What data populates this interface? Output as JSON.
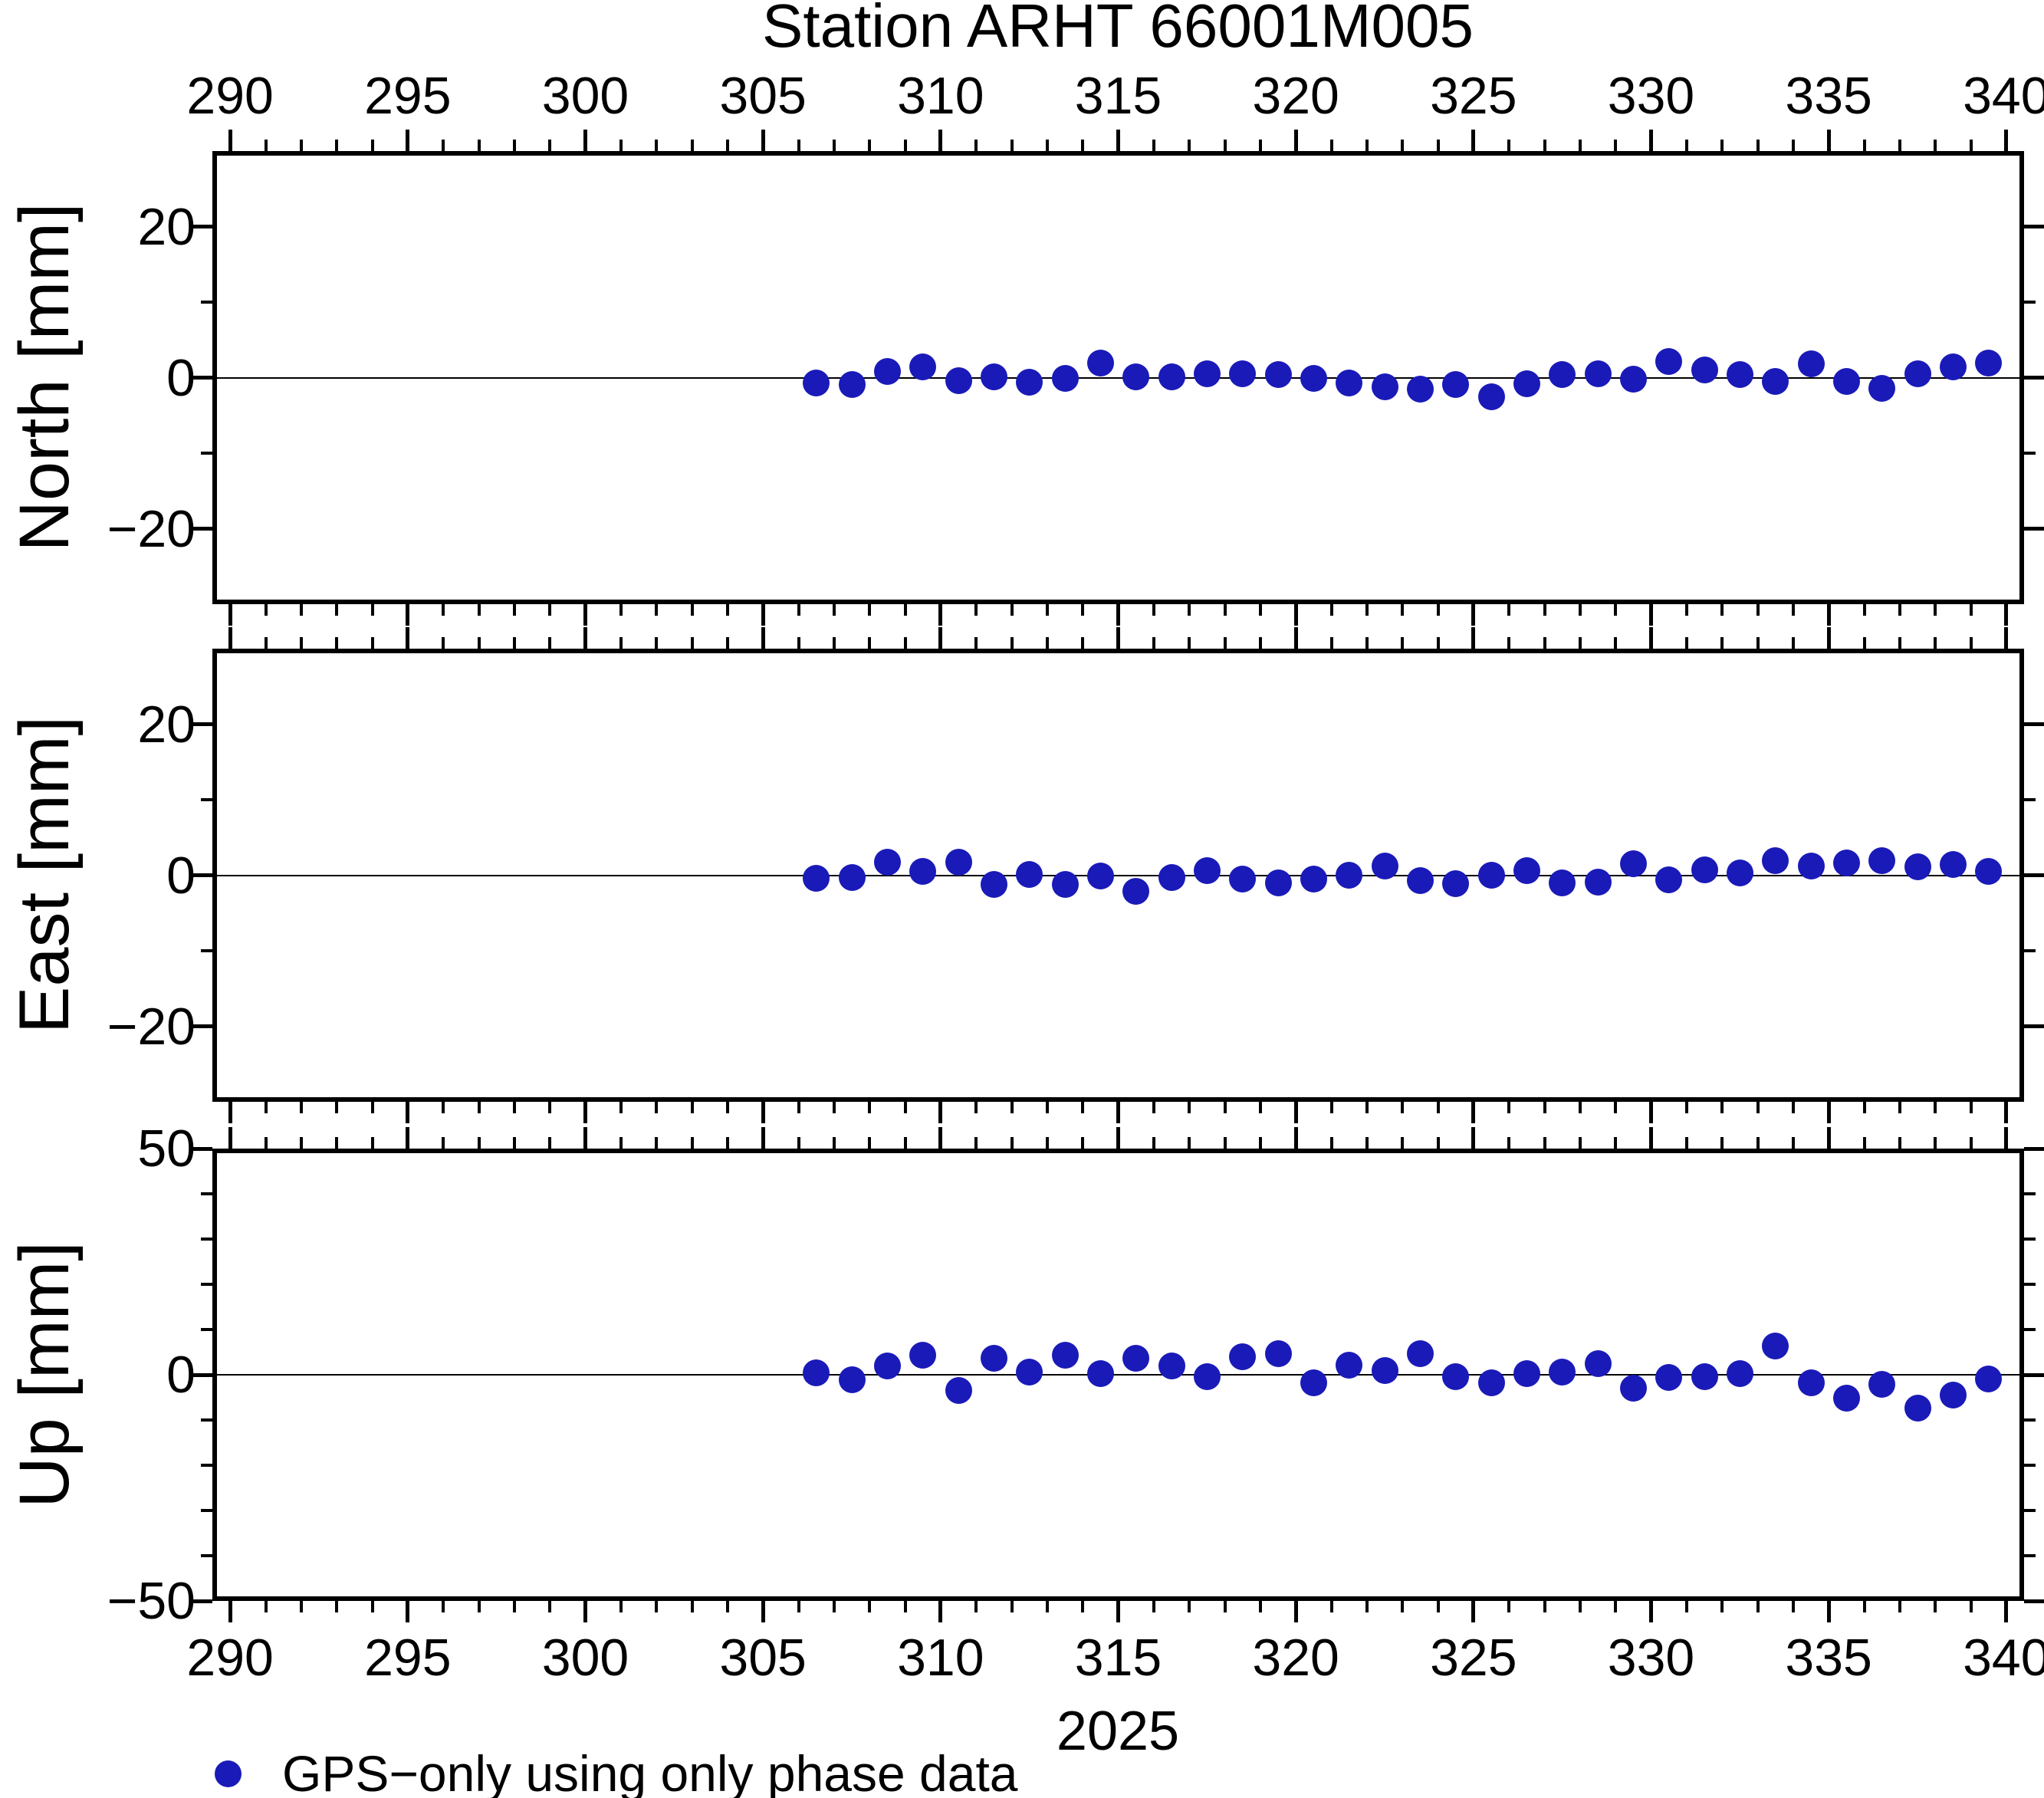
{
  "title": "Station ARHT 66001M005",
  "year_label": "2025",
  "legend": {
    "label": "GPS−only using only phase data",
    "marker": "circle",
    "marker_color": "#1a1ab9"
  },
  "chart_data": {
    "type": "scatter",
    "title": "Station ARHT 66001M005",
    "xlabel": "2025",
    "xlim": [
      289.5,
      340.5
    ],
    "x_major_ticks": [
      290,
      295,
      300,
      305,
      310,
      315,
      320,
      325,
      330,
      335,
      340
    ],
    "x_minor_tick_step": 1,
    "grid": "zero-line-only",
    "legend_position": "bottom-left",
    "series_name": "GPS−only using only phase data",
    "marker_color": "#1a1ab9",
    "x": [
      306.5,
      307.5,
      308.5,
      309.5,
      310.5,
      311.5,
      312.5,
      313.5,
      314.5,
      315.5,
      316.5,
      317.5,
      318.5,
      319.5,
      320.5,
      321.5,
      322.5,
      323.5,
      324.5,
      325.5,
      326.5,
      327.5,
      328.5,
      329.5,
      330.5,
      331.5,
      332.5,
      333.5,
      334.5,
      335.5,
      336.5,
      337.5,
      338.5,
      339.5
    ],
    "panels": [
      {
        "name": "North",
        "ylabel": "North [mm]",
        "ylim": [
          -30,
          30
        ],
        "y_major_ticks": [
          20,
          0,
          -20
        ],
        "y_major_tick_labels": [
          "20",
          "0",
          "−20"
        ],
        "y_minor_tick_step": 10,
        "values": [
          -0.7,
          -0.9,
          0.8,
          1.4,
          -0.4,
          0.1,
          -0.6,
          -0.1,
          1.9,
          0.1,
          0.1,
          0.5,
          0.5,
          0.4,
          -0.1,
          -0.7,
          -1.2,
          -1.5,
          -0.9,
          -2.5,
          -0.8,
          0.4,
          0.5,
          -0.2,
          2.1,
          1.0,
          0.4,
          -0.5,
          1.8,
          -0.5,
          -1.4,
          0.5,
          1.4,
          1.9
        ]
      },
      {
        "name": "East",
        "ylabel": "East [mm]",
        "ylim": [
          -30,
          30
        ],
        "y_major_ticks": [
          20,
          0,
          -20
        ],
        "y_major_tick_labels": [
          "20",
          "0",
          "−20"
        ],
        "y_minor_tick_step": 10,
        "values": [
          -0.4,
          -0.3,
          1.7,
          0.5,
          1.7,
          -1.2,
          0.1,
          -1.2,
          -0.1,
          -2.1,
          -0.3,
          0.6,
          -0.5,
          -1.0,
          -0.5,
          0.0,
          1.2,
          -0.7,
          -1.1,
          0.0,
          0.6,
          -1.0,
          -0.9,
          1.5,
          -0.6,
          0.7,
          0.3,
          1.9,
          1.2,
          1.6,
          1.9,
          1.1,
          1.4,
          0.5
        ]
      },
      {
        "name": "Up",
        "ylabel": "Up [mm]",
        "ylim": [
          -50,
          50
        ],
        "y_major_ticks": [
          50,
          0,
          -50
        ],
        "y_major_tick_labels": [
          "50",
          "0",
          "−50"
        ],
        "y_minor_tick_step": 10,
        "values": [
          0.5,
          -1.1,
          1.9,
          4.3,
          -3.5,
          3.7,
          0.6,
          4.3,
          0.2,
          3.7,
          1.9,
          -0.4,
          3.9,
          4.7,
          -1.7,
          2.1,
          0.9,
          4.6,
          -0.5,
          -1.7,
          0.2,
          0.6,
          2.5,
          -2.9,
          -0.6,
          -0.5,
          0.3,
          6.3,
          -1.8,
          -5.2,
          -2.1,
          -7.3,
          -4.5,
          -0.9
        ]
      }
    ]
  }
}
